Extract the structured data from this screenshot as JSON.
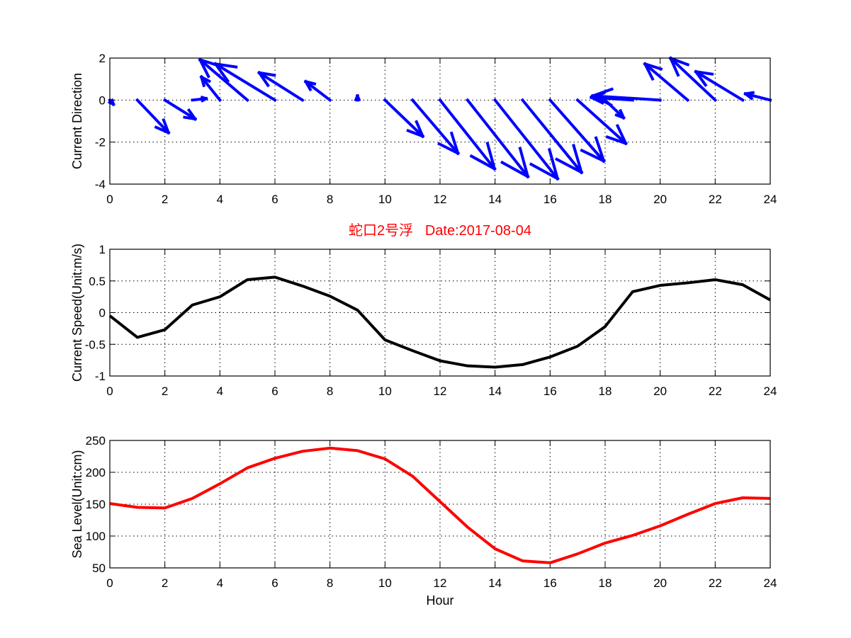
{
  "chart_data": [
    {
      "type": "quiver",
      "ylabel": "Current Direction",
      "xlim": [
        0,
        24
      ],
      "ylim": [
        -4,
        2
      ],
      "xticks": [
        "0",
        "2",
        "4",
        "6",
        "8",
        "10",
        "12",
        "14",
        "16",
        "18",
        "20",
        "22",
        "24"
      ],
      "yticks": [
        "-4",
        "-2",
        "0",
        "2"
      ],
      "ytick_values": [
        -4,
        -2,
        0,
        2
      ],
      "grid": true,
      "color": "#0000ff",
      "x": [
        0,
        1,
        2,
        3,
        4,
        5,
        6,
        7,
        8,
        9,
        10,
        11,
        12,
        13,
        14,
        15,
        16,
        17,
        18,
        19,
        20,
        21,
        22,
        23,
        24
      ],
      "u": [
        0.13,
        1.13,
        1.1,
        0.5,
        -0.67,
        -1.72,
        -2.16,
        -1.57,
        -0.88,
        0.0,
        1.37,
        1.65,
        1.98,
        2.19,
        2.27,
        2.14,
        1.95,
        1.75,
        0.67,
        -1.5,
        -2.45,
        -1.55,
        -1.62,
        -1.7,
        -0.9
      ],
      "v": [
        -0.2,
        -1.55,
        -0.9,
        0.07,
        1.1,
        1.92,
        1.72,
        1.3,
        0.88,
        0.2,
        -1.72,
        -2.53,
        -3.27,
        -3.64,
        -3.74,
        -3.44,
        -2.9,
        -2.06,
        -0.84,
        0.13,
        0.2,
        1.72,
        1.99,
        1.35,
        0.3
      ]
    },
    {
      "type": "line",
      "title": "蛇口2号浮   Date:2017-08-04",
      "title_color": "#ff0000",
      "ylabel": "Current Speed(Unit:m/s)",
      "xlim": [
        0,
        24
      ],
      "ylim": [
        -1,
        1
      ],
      "xticks": [
        "0",
        "2",
        "4",
        "6",
        "8",
        "10",
        "12",
        "14",
        "16",
        "18",
        "20",
        "22",
        "24"
      ],
      "yticks": [
        "-1",
        "-0.5",
        "0",
        "0.5",
        "1"
      ],
      "ytick_values": [
        -1,
        -0.5,
        0,
        0.5,
        1
      ],
      "grid": true,
      "color": "#000000",
      "x": [
        0,
        1,
        2,
        3,
        4,
        5,
        6,
        7,
        8,
        9,
        10,
        11,
        12,
        13,
        14,
        15,
        16,
        17,
        18,
        19,
        20,
        21,
        22,
        23,
        24
      ],
      "y": [
        -0.05,
        -0.39,
        -0.27,
        0.12,
        0.25,
        0.52,
        0.56,
        0.42,
        0.26,
        0.04,
        -0.43,
        -0.6,
        -0.76,
        -0.84,
        -0.86,
        -0.82,
        -0.7,
        -0.53,
        -0.22,
        0.33,
        0.43,
        0.47,
        0.52,
        0.44,
        0.2
      ]
    },
    {
      "type": "line",
      "xlabel": "Hour",
      "ylabel": "Sea Level(Unit:cm)",
      "xlim": [
        0,
        24
      ],
      "ylim": [
        50,
        250
      ],
      "xticks": [
        "0",
        "2",
        "4",
        "6",
        "8",
        "10",
        "12",
        "14",
        "16",
        "18",
        "20",
        "22",
        "24"
      ],
      "yticks": [
        "50",
        "100",
        "150",
        "200",
        "250"
      ],
      "ytick_values": [
        50,
        100,
        150,
        200,
        250
      ],
      "grid": true,
      "color": "#ff0000",
      "x": [
        0,
        1,
        2,
        3,
        4,
        5,
        6,
        7,
        8,
        9,
        10,
        11,
        12,
        13,
        14,
        15,
        16,
        17,
        18,
        19,
        20,
        21,
        22,
        23,
        24
      ],
      "y": [
        151,
        145,
        144,
        159,
        182,
        207,
        222,
        233,
        238,
        234,
        221,
        194,
        154,
        114,
        80,
        61,
        58,
        72,
        89,
        101,
        116,
        134,
        151,
        160,
        159
      ]
    }
  ]
}
